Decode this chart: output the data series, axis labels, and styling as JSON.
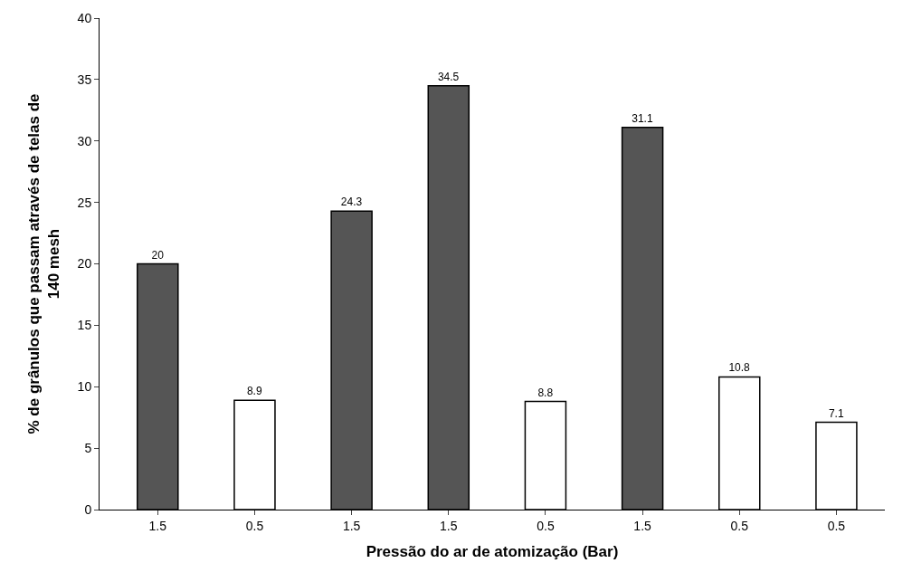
{
  "chart_data": {
    "type": "bar",
    "xlabel": "Pressão do ar de atomização (Bar)",
    "ylabel": "% de grânulos que passam através de telas de 140 mesh",
    "categories": [
      "1.5",
      "0.5",
      "1.5",
      "1.5",
      "0.5",
      "1.5",
      "0.5",
      "0.5"
    ],
    "values": [
      20,
      8.9,
      24.3,
      34.5,
      8.8,
      31.1,
      10.8,
      7.1
    ],
    "colors": [
      "#555555",
      "#ffffff",
      "#555555",
      "#555555",
      "#ffffff",
      "#555555",
      "#ffffff",
      "#ffffff"
    ],
    "ylim": [
      0,
      40
    ],
    "yticks": [
      0,
      5,
      10,
      15,
      20,
      25,
      30,
      35,
      40
    ],
    "data_labels": true
  }
}
